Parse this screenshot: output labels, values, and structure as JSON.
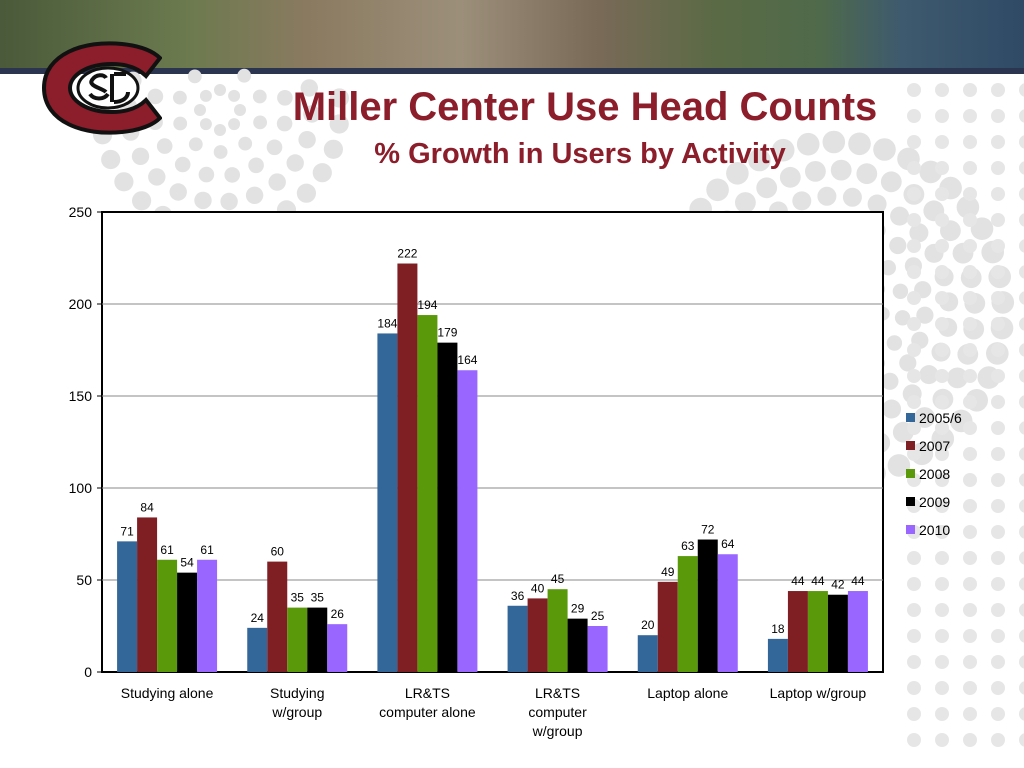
{
  "slide": {
    "title": "Miller Center Use Head Counts",
    "subtitle": "% Growth in Users by Activity",
    "title_color": "#8c1d2a",
    "logo_icon": "scsu-huskies-logo-icon"
  },
  "chart_data": {
    "type": "bar",
    "categories": [
      [
        "Studying alone"
      ],
      [
        "Studying",
        "w/group"
      ],
      [
        "LR&TS",
        "computer alone"
      ],
      [
        "LR&TS",
        "computer",
        "w/group"
      ],
      [
        "Laptop alone"
      ],
      [
        "Laptop w/group"
      ]
    ],
    "series": [
      {
        "name": "2005/6",
        "color": "#336699",
        "values": [
          71,
          24,
          184,
          36,
          20,
          18
        ]
      },
      {
        "name": "2007",
        "color": "#7f1f24",
        "values": [
          84,
          60,
          222,
          40,
          49,
          44
        ]
      },
      {
        "name": "2008",
        "color": "#5a9a0a",
        "values": [
          61,
          35,
          194,
          45,
          63,
          44
        ]
      },
      {
        "name": "2009",
        "color": "#000000",
        "values": [
          54,
          35,
          179,
          29,
          72,
          42
        ]
      },
      {
        "name": "2010",
        "color": "#9966ff",
        "values": [
          61,
          26,
          164,
          25,
          64,
          44
        ]
      }
    ],
    "ylim": [
      0,
      250
    ],
    "yticks": [
      0,
      50,
      100,
      150,
      200,
      250
    ],
    "grid": true,
    "legend": "right",
    "data_labels": true
  }
}
